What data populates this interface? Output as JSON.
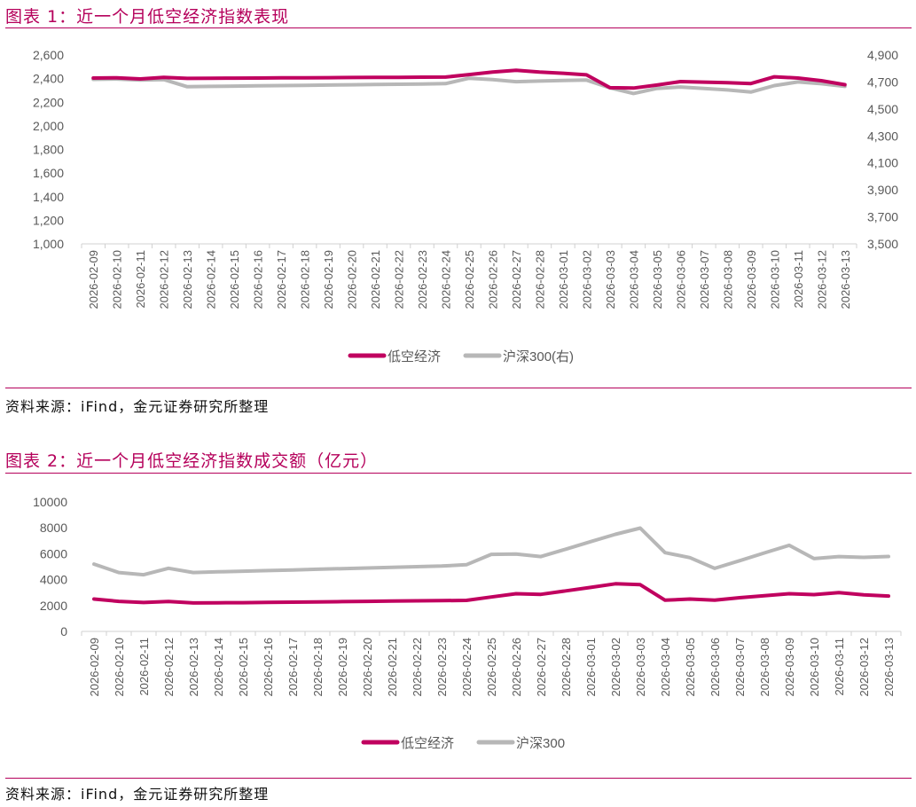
{
  "figure1": {
    "title": "图表 1：近一个月低空经济指数表现",
    "source": "资料来源：iFind，金元证券研究所整理"
  },
  "figure2": {
    "title": "图表 2：近一个月低空经济指数成交额（亿元）",
    "source": "资料来源：iFind，金元证券研究所整理"
  },
  "colors": {
    "accent": "#c0005f",
    "gray": "#b7b7b7",
    "axis": "#d0d0d0",
    "text": "#595959"
  },
  "chart_data": [
    {
      "type": "line",
      "categories": [
        "2026-02-09",
        "2026-02-10",
        "2026-02-11",
        "2026-02-12",
        "2026-02-13",
        "2026-02-14",
        "2026-02-15",
        "2026-02-16",
        "2026-02-17",
        "2026-02-18",
        "2026-02-19",
        "2026-02-20",
        "2026-02-21",
        "2026-02-22",
        "2026-02-23",
        "2026-02-24",
        "2026-02-25",
        "2026-02-26",
        "2026-02-27",
        "2026-02-28",
        "2026-03-01",
        "2026-03-02",
        "2026-03-03",
        "2026-03-04",
        "2026-03-05",
        "2026-03-06",
        "2026-03-07",
        "2026-03-08",
        "2026-03-09",
        "2026-03-10",
        "2026-03-11",
        "2026-03-12",
        "2026-03-13"
      ],
      "ylim": [
        1000,
        2600
      ],
      "yticks": [
        1000,
        1200,
        1400,
        1600,
        1800,
        2000,
        2200,
        2400,
        2600
      ],
      "ytick_labels": [
        "1,000",
        "1,200",
        "1,400",
        "1,600",
        "1,800",
        "2,000",
        "2,200",
        "2,400",
        "2,600"
      ],
      "y2lim": [
        3500,
        4900
      ],
      "y2ticks": [
        3500,
        3700,
        3900,
        4100,
        4300,
        4500,
        4700,
        4900
      ],
      "y2tick_labels": [
        "3,500",
        "3,700",
        "3,900",
        "4,100",
        "4,300",
        "4,500",
        "4,700",
        "4,900"
      ],
      "legend_position": "bottom",
      "series": [
        {
          "name": "低空经济",
          "axis": "left",
          "color": "#c0005f",
          "values": [
            2405,
            2407,
            2397,
            2410,
            2402,
            2403,
            2404,
            2405,
            2406,
            2407,
            2408,
            2409,
            2410,
            2411,
            2412,
            2413,
            2434,
            2455,
            2470,
            2455,
            2445,
            2432,
            2323,
            2320,
            2345,
            2375,
            2370,
            2365,
            2358,
            2415,
            2405,
            2382,
            2348
          ]
        },
        {
          "name": "沪深300(右)",
          "axis": "right",
          "color": "#b7b7b7",
          "values": [
            4719,
            4722,
            4714,
            4718,
            4665,
            4667,
            4669,
            4671,
            4673,
            4675,
            4677,
            4679,
            4681,
            4683,
            4685,
            4688,
            4728,
            4718,
            4702,
            4707,
            4711,
            4714,
            4656,
            4615,
            4652,
            4663,
            4652,
            4641,
            4625,
            4673,
            4700,
            4687,
            4667
          ]
        }
      ]
    },
    {
      "type": "line",
      "categories": [
        "2026-02-09",
        "2026-02-10",
        "2026-02-11",
        "2026-02-12",
        "2026-02-13",
        "2026-02-14",
        "2026-02-15",
        "2026-02-16",
        "2026-02-17",
        "2026-02-18",
        "2026-02-19",
        "2026-02-20",
        "2026-02-21",
        "2026-02-22",
        "2026-02-23",
        "2026-02-24",
        "2026-02-25",
        "2026-02-26",
        "2026-02-27",
        "2026-02-28",
        "2026-03-01",
        "2026-03-02",
        "2026-03-03",
        "2026-03-04",
        "2026-03-05",
        "2026-03-06",
        "2026-03-07",
        "2026-03-08",
        "2026-03-09",
        "2026-03-10",
        "2026-03-11",
        "2026-03-12",
        "2026-03-13"
      ],
      "ylim": [
        0,
        10000
      ],
      "yticks": [
        0,
        2000,
        4000,
        6000,
        8000,
        10000
      ],
      "ytick_labels": [
        "0",
        "2000",
        "4000",
        "6000",
        "8000",
        "10000"
      ],
      "legend_position": "bottom",
      "series": [
        {
          "name": "低空经济",
          "color": "#c0005f",
          "values": [
            2500,
            2320,
            2230,
            2310,
            2200,
            2210,
            2220,
            2240,
            2260,
            2280,
            2300,
            2320,
            2340,
            2360,
            2380,
            2400,
            2660,
            2910,
            2860,
            3130,
            3400,
            3680,
            3610,
            2410,
            2500,
            2420,
            2600,
            2760,
            2910,
            2840,
            3000,
            2830,
            2730
          ]
        },
        {
          "name": "沪深300",
          "color": "#b7b7b7",
          "values": [
            5200,
            4550,
            4380,
            4880,
            4550,
            4600,
            4650,
            4700,
            4750,
            4800,
            4850,
            4900,
            4950,
            5000,
            5050,
            5150,
            5950,
            5980,
            5780,
            6350,
            6930,
            7500,
            7980,
            6080,
            5700,
            4870,
            5460,
            6060,
            6650,
            5620,
            5780,
            5720,
            5790
          ]
        }
      ]
    }
  ]
}
